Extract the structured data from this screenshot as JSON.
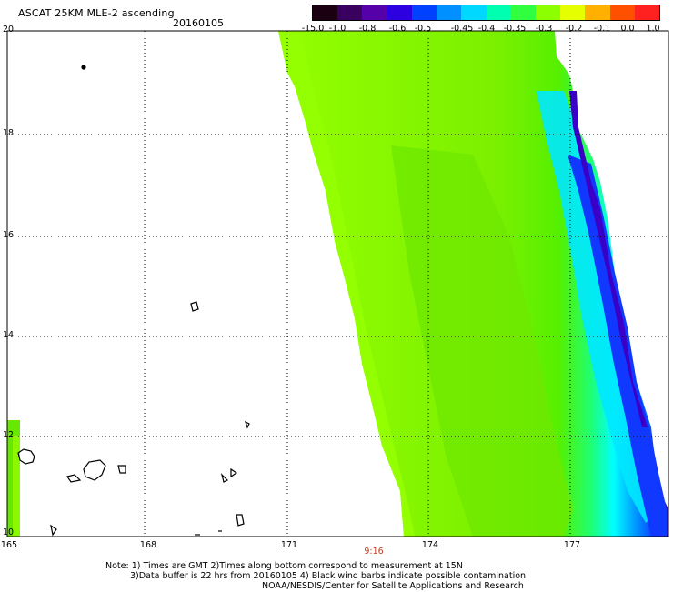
{
  "header": {
    "title": "ASCAT 25KM MLE-2 ascending",
    "date": "20160105"
  },
  "colorbar": {
    "labels": [
      "-15.0",
      "-1.0",
      "-0.8",
      "-0.6",
      "-0.5",
      "-0.45",
      "-0.4",
      "-0.35",
      "-0.3",
      "-0.2",
      "-0.1",
      "0.0",
      "1.0"
    ],
    "colors": [
      "#1a0010",
      "#3a0060",
      "#5500a8",
      "#2c00e0",
      "#0040ff",
      "#0090ff",
      "#00d8ff",
      "#00ffb0",
      "#30ff40",
      "#8cff00",
      "#e6ff00",
      "#ffb000",
      "#ff5000",
      "#ff2020"
    ]
  },
  "map": {
    "y_labels": [
      "20",
      "18",
      "16",
      "14",
      "12",
      "10"
    ],
    "x_labels": [
      "165",
      "168",
      "171",
      "174",
      "177"
    ],
    "time_label": "9:16",
    "colors": {
      "swath_green": "#7cf000",
      "swath_lime": "#94ff00",
      "cyan": "#00ffff",
      "blue": "#1040ff",
      "indigo": "#3000d0"
    }
  },
  "notes": {
    "line1": "Note: 1) Times are GMT 2)Times along bottom correspond to measurement at 15N",
    "line2": "3)Data buffer is 22 hrs from 20160105 4) Black wind barbs indicate possible contamination",
    "line3": "NOAA/NESDIS/Center for Satellite Applications and Research"
  }
}
